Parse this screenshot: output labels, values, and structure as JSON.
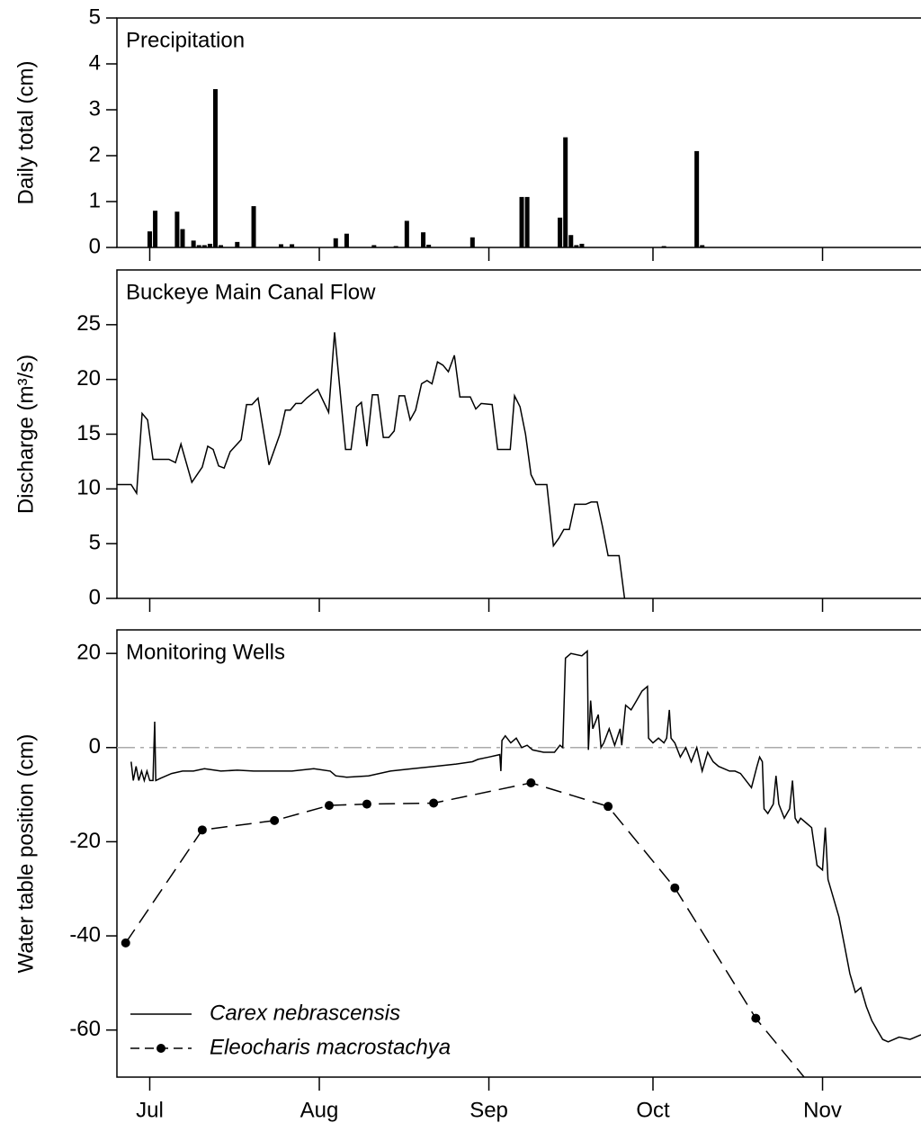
{
  "chart_data": [
    {
      "type": "bar",
      "title": "Precipitation",
      "ylabel": "Daily total (cm)",
      "xlim": [
        -6,
        141
      ],
      "xticks": [
        0,
        31,
        62,
        92,
        123
      ],
      "ylim": [
        0,
        5
      ],
      "yticks": [
        0,
        1,
        2,
        3,
        4,
        5
      ],
      "color": "#000000",
      "x": [
        0,
        1,
        5,
        6,
        8,
        9,
        10,
        11,
        12,
        13,
        16,
        19,
        24,
        26,
        34,
        36,
        41,
        45,
        47,
        50,
        51,
        59,
        68,
        69,
        75,
        76,
        77,
        78,
        79,
        94,
        100,
        101
      ],
      "values": [
        0.35,
        0.8,
        0.78,
        0.4,
        0.15,
        0.05,
        0.05,
        0.08,
        3.45,
        0.05,
        0.12,
        0.9,
        0.07,
        0.07,
        0.2,
        0.3,
        0.05,
        0.03,
        0.58,
        0.33,
        0.06,
        0.22,
        1.1,
        1.1,
        0.65,
        2.4,
        0.27,
        0.05,
        0.08,
        0.03,
        2.1,
        0.05
      ]
    },
    {
      "type": "line",
      "title": "Buckeye Main Canal Flow",
      "ylabel": "Discharge (m³/s)",
      "xlim": [
        -6,
        141
      ],
      "xticks": [
        0,
        31,
        62,
        92,
        123
      ],
      "ylim": [
        0,
        30
      ],
      "yticks": [
        0,
        5,
        10,
        15,
        20,
        25
      ],
      "color": "#000000",
      "x": [
        -6,
        -3.4,
        -2.4,
        -1.4,
        -0.4,
        0.6,
        3.5,
        4.7,
        5.7,
        7.7,
        9.6,
        10.6,
        11.6,
        12.6,
        13.6,
        14.7,
        16.7,
        17.7,
        18.7,
        19.8,
        21.8,
        23.8,
        24.8,
        25.7,
        26.7,
        27.7,
        28.7,
        30.7,
        32.7,
        33.8,
        35.8,
        36.8,
        37.8,
        38.7,
        39.7,
        40.7,
        41.7,
        42.7,
        43.7,
        44.7,
        45.6,
        46.6,
        47.6,
        48.6,
        49.7,
        50.7,
        51.6,
        52.6,
        53.6,
        54.6,
        55.7,
        56.7,
        58.6,
        59.6,
        60.6,
        62.6,
        63.6,
        65.9,
        66.7,
        67.7,
        68.7,
        69.7,
        70.6,
        72.6,
        73.8,
        74.8,
        75.7,
        76.7,
        77.7,
        79.7,
        80.7,
        81.8,
        82.8,
        83.8,
        85.8,
        86.8
      ],
      "values": [
        10.4,
        10.4,
        9.6,
        16.9,
        16.3,
        12.7,
        12.7,
        12.4,
        14.1,
        10.6,
        12.0,
        13.9,
        13.6,
        12.1,
        11.9,
        13.4,
        14.5,
        17.7,
        17.7,
        18.3,
        12.2,
        15.0,
        17.2,
        17.2,
        17.8,
        17.8,
        18.3,
        19.1,
        17.0,
        24.3,
        13.6,
        13.6,
        17.5,
        17.9,
        13.9,
        18.6,
        18.6,
        14.7,
        14.7,
        15.3,
        18.5,
        18.5,
        16.3,
        17.2,
        19.6,
        19.9,
        19.6,
        21.6,
        21.3,
        20.7,
        22.2,
        18.4,
        18.4,
        17.3,
        17.8,
        17.7,
        13.6,
        13.6,
        18.5,
        17.5,
        15.0,
        11.3,
        10.4,
        10.4,
        4.8,
        5.5,
        6.3,
        6.3,
        8.6,
        8.6,
        8.8,
        8.8,
        6.5,
        3.9,
        3.9,
        0
      ]
    },
    {
      "type": "line",
      "title": "Monitoring Wells",
      "ylabel": "Water table position (cm)",
      "xlim": [
        -6,
        141
      ],
      "xticks": [
        {
          "value": 0,
          "label": "Jul"
        },
        {
          "value": 31,
          "label": "Aug"
        },
        {
          "value": 62,
          "label": "Sep"
        },
        {
          "value": 92,
          "label": "Oct"
        },
        {
          "value": 123,
          "label": "Nov"
        }
      ],
      "ylim": [
        -70,
        25
      ],
      "yticks": [
        -60,
        -40,
        -20,
        0,
        20
      ],
      "reference_line": 0,
      "legend": "lower left",
      "series": [
        {
          "name": "Carex nebrascensis",
          "color": "#000000",
          "dash": "solid",
          "marker": false,
          "x": [
            -3.4,
            -3,
            -2.5,
            -2,
            -1.5,
            -1,
            -0.5,
            0,
            0.6,
            0.9,
            1.1,
            2,
            4,
            6,
            8,
            10,
            13,
            16,
            19,
            22,
            26,
            30,
            33,
            34,
            36,
            40,
            44,
            48,
            52,
            56,
            59,
            60,
            62,
            64,
            64.2,
            64.4,
            65,
            66,
            67,
            68,
            69,
            70,
            72,
            74,
            75,
            75.5,
            76,
            77,
            79,
            80,
            80.2,
            80.6,
            81,
            82,
            82.5,
            83,
            84,
            85,
            86,
            86.3,
            87,
            88,
            89,
            90,
            91,
            91.2,
            92,
            93,
            94,
            94.5,
            95,
            95.3,
            96,
            97,
            98,
            99,
            100,
            101,
            102,
            103,
            104,
            105,
            106,
            107,
            108,
            109,
            110,
            111,
            111.5,
            112,
            112.3,
            113,
            114,
            114.5,
            115,
            116,
            117,
            117.5,
            118,
            118.5,
            119,
            120,
            121,
            122,
            123,
            123.5,
            124,
            125,
            126,
            127,
            128,
            129,
            130,
            131,
            132,
            133,
            134,
            135,
            137,
            139,
            141
          ],
          "values": [
            -3,
            -7,
            -4,
            -7,
            -5,
            -7,
            -5,
            -7,
            -7,
            5.5,
            -7,
            -6.5,
            -5.5,
            -5,
            -5,
            -4.5,
            -5,
            -4.8,
            -5,
            -5,
            -5,
            -4.5,
            -5,
            -6,
            -6.3,
            -6,
            -5,
            -4.5,
            -4,
            -3.5,
            -3,
            -2.5,
            -2,
            -1.5,
            -5,
            1.5,
            2.5,
            1,
            2,
            0,
            0.5,
            -0.5,
            -1,
            -1,
            0.5,
            0,
            19,
            20,
            19.5,
            20.5,
            -0.5,
            10,
            4,
            7,
            0,
            1,
            4,
            0.5,
            4,
            0.5,
            9,
            8,
            10,
            12,
            13,
            2,
            1,
            2,
            1,
            2,
            8,
            2,
            1,
            -2,
            0,
            -3,
            0,
            -5,
            -1,
            -3,
            -4,
            -4.5,
            -5,
            -5,
            -5.5,
            -7,
            -8.5,
            -4,
            -2,
            -3,
            -13,
            -14,
            -12,
            -6,
            -12,
            -15,
            -13,
            -7,
            -15,
            -16,
            -15,
            -16,
            -17,
            -25,
            -26,
            -17,
            -28,
            -32,
            -36,
            -42,
            -48,
            -52,
            -51,
            -55,
            -58,
            -60,
            -62,
            -62.5,
            -61.5,
            -62,
            -61
          ]
        },
        {
          "name": "Eleocharis macrostachya",
          "color": "#000000",
          "dash": "long-dash",
          "marker": true,
          "x": [
            -4.4,
            9.6,
            22.8,
            32.8,
            39.7,
            51.9,
            69.7,
            83.8,
            96,
            110.8,
            125
          ],
          "values": [
            -41.5,
            -17.5,
            -15.5,
            -12.3,
            -12,
            -11.8,
            -7.5,
            -12.5,
            -29.8,
            -57.5,
            -77.6
          ]
        }
      ]
    }
  ]
}
